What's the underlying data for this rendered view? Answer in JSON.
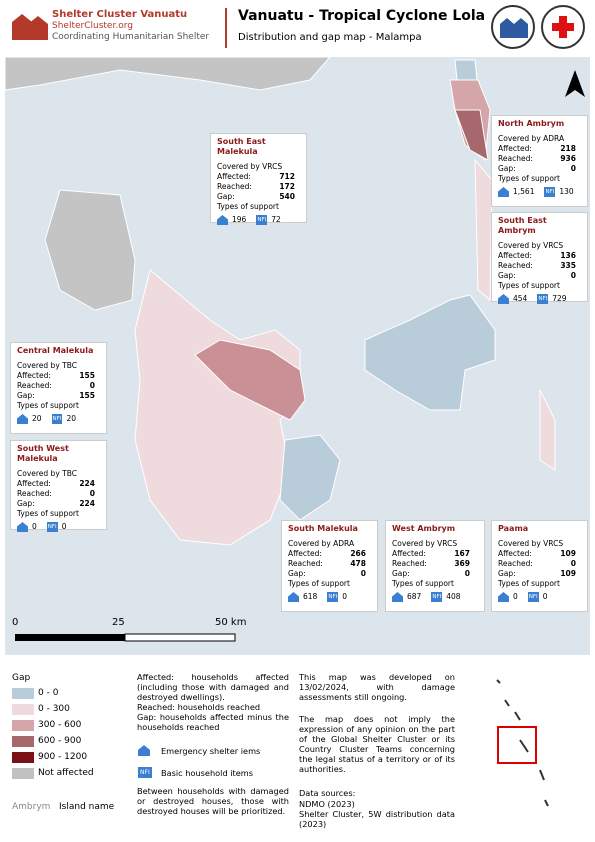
{
  "header": {
    "org_name": "Shelter Cluster Vanuatu",
    "website": "ShelterCluster.org",
    "tagline": "Coordinating Humanitarian Shelter",
    "title": "Vanuatu - Tropical Cyclone Lola",
    "subtitle": "Distribution and gap map - Malampa"
  },
  "field_labels": {
    "affected": "Affected:",
    "reached": "Reached:",
    "gap": "Gap:",
    "support": "Types of support",
    "nfi_icon": "NFI"
  },
  "areas": [
    {
      "name": "South East Malekula",
      "covered_by": "Covered by VRCS",
      "affected": 712,
      "reached": 172,
      "gap": 540,
      "emergency_shelter": 196,
      "nfi": 72
    },
    {
      "name": "North Ambrym",
      "covered_by": "Covered by ADRA",
      "affected": 218,
      "reached": 936,
      "gap": 0,
      "emergency_shelter": "1,561",
      "nfi": 130
    },
    {
      "name": "South East Ambrym",
      "covered_by": "Covered by VRCS",
      "affected": 136,
      "reached": 335,
      "gap": 0,
      "emergency_shelter": 454,
      "nfi": 729
    },
    {
      "name": "Central Malekula",
      "covered_by": "Covered by TBC",
      "affected": 155,
      "reached": 0,
      "gap": 155,
      "emergency_shelter": 20,
      "nfi": 20
    },
    {
      "name": "South West Malekula",
      "covered_by": "Covered by TBC",
      "affected": 224,
      "reached": 0,
      "gap": 224,
      "emergency_shelter": 0,
      "nfi": 0
    },
    {
      "name": "South Malekula",
      "covered_by": "Covered by ADRA",
      "affected": 266,
      "reached": 478,
      "gap": 0,
      "emergency_shelter": 618,
      "nfi": 0
    },
    {
      "name": "West Ambrym",
      "covered_by": "Covered by VRCS",
      "affected": 167,
      "reached": 369,
      "gap": 0,
      "emergency_shelter": 687,
      "nfi": 408
    },
    {
      "name": "Paama",
      "covered_by": "Covered by VRCS",
      "affected": 109,
      "reached": 0,
      "gap": 109,
      "emergency_shelter": 0,
      "nfi": 0
    }
  ],
  "scale_bar": {
    "ticks": [
      "0",
      "25",
      "50 km"
    ]
  },
  "legend": {
    "title": "Gap",
    "items": [
      {
        "label": "0 - 0",
        "color": "#b9ccda"
      },
      {
        "label": "0 - 300",
        "color": "#efdadd"
      },
      {
        "label": "300 - 600",
        "color": "#d4a6aa"
      },
      {
        "label": "600 - 900",
        "color": "#a6686d"
      },
      {
        "label": "900 - 1200",
        "color": "#7b1015"
      },
      {
        "label": "Not affected",
        "color": "#c1c1c1"
      }
    ],
    "island_sample": "Ambrym",
    "island_label": "Island name"
  },
  "definitions": {
    "affected": "Affected: households affected (including those with damaged and destroyed dwellings).",
    "reached": "Reached: households reached",
    "gap": "Gap: households affected minus the households reached",
    "emergency_icon": "Emergency shelter iems",
    "nfi_icon": "Basic household items",
    "priority": "Between households with damaged or destroyed houses, those with destroyed houses will be prioritized."
  },
  "notes": {
    "developed": "This map was developed on 13/02/2024, with damage assessments still ongoing.",
    "disclaimer": "The map does not imply the expression of any opinion on the part of the Global Shelter Cluster or its Country Cluster Teams concerning the legal status of a territory or of its authorities.",
    "sources_title": "Data sources:",
    "source_1": "NDMO (2023)",
    "source_2": "Shelter Cluster, 5W distribution data (2023)"
  }
}
